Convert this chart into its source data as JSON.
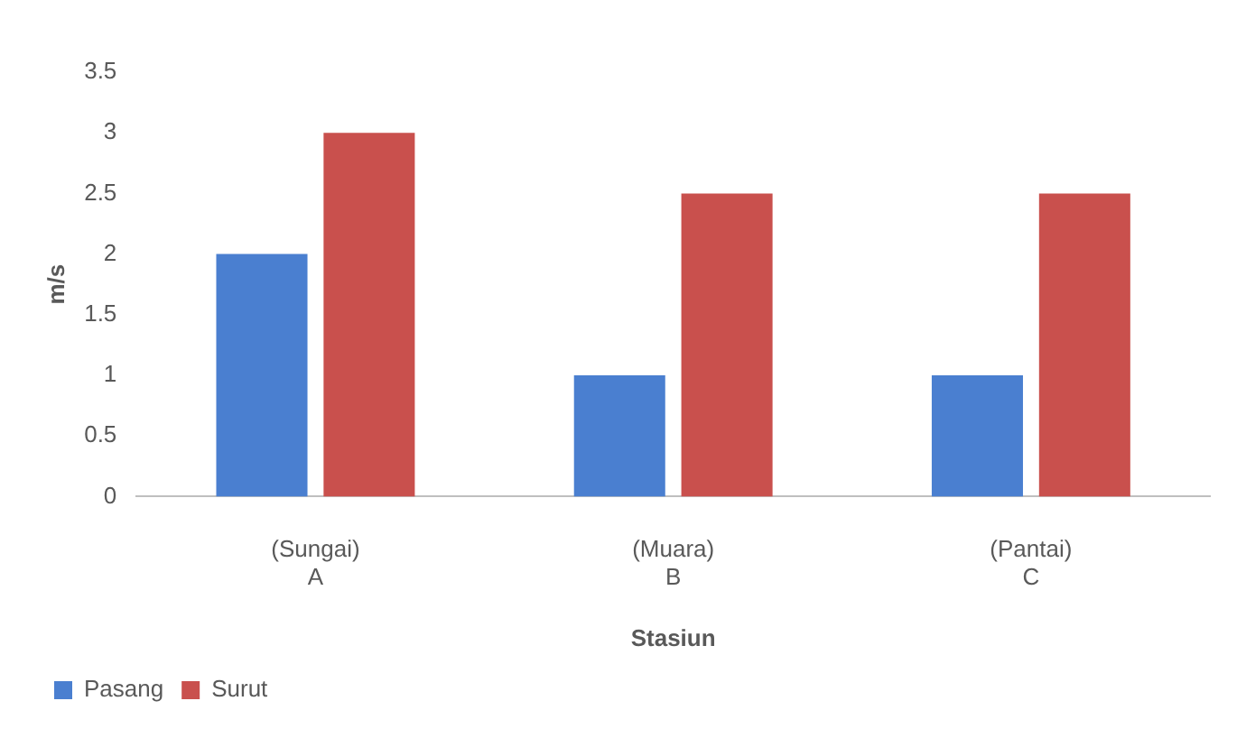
{
  "chart_data": {
    "type": "bar",
    "xlabel": "Stasiun",
    "ylabel": "m/s",
    "categories": [
      "(Sungai)\nA",
      "(Muara)\nB",
      "(Pantai)\nC"
    ],
    "series": [
      {
        "name": "Pasang",
        "color": "#4a7fd0",
        "values": [
          2,
          1,
          1
        ]
      },
      {
        "name": "Surut",
        "color": "#c9504d",
        "values": [
          3,
          2.5,
          2.5
        ]
      }
    ],
    "ylim": [
      0,
      3.5
    ],
    "yticks": [
      0,
      0.5,
      1,
      1.5,
      2,
      2.5,
      3,
      3.5
    ],
    "grid": false,
    "legend": "bottom left"
  }
}
